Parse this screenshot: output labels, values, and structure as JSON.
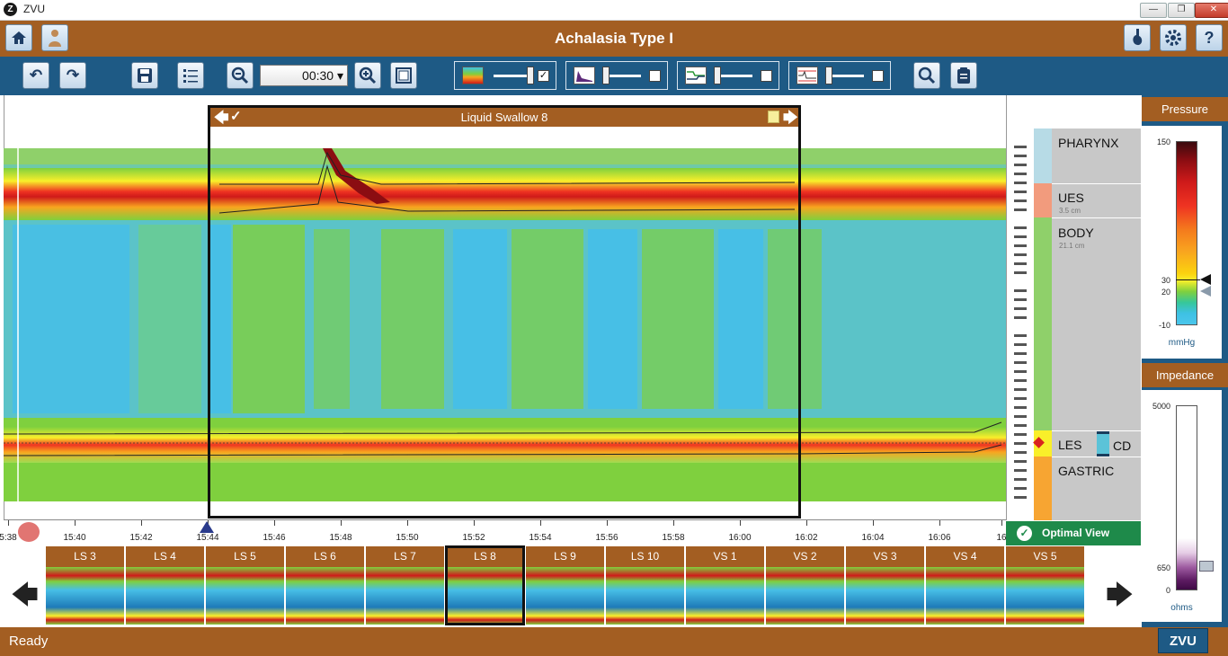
{
  "window": {
    "app_name": "ZVU",
    "logo_letter": "Z",
    "minimize": "—",
    "restore": "❐",
    "close": "✕"
  },
  "header": {
    "title": "Achalasia Type I"
  },
  "toolbar": {
    "zoom_value": "00:30 ▾"
  },
  "swallow": {
    "title": "Liquid Swallow 8"
  },
  "time_axis": {
    "ticks": [
      "5:38",
      "15:40",
      "15:42",
      "15:44",
      "15:46",
      "15:48",
      "15:50",
      "15:52",
      "15:54",
      "15:56",
      "15:58",
      "16:00",
      "16:02",
      "16:04",
      "16:06",
      "16"
    ]
  },
  "thumbnails": [
    "LS 3",
    "LS 4",
    "LS 5",
    "LS 6",
    "LS 7",
    "LS 8",
    "LS 9",
    "LS 10",
    "VS 1",
    "VS 2",
    "VS 3",
    "VS 4",
    "VS 5"
  ],
  "anatomy": {
    "pharynx": "PHARYNX",
    "ues": "UES",
    "ues_sub": "3.5 cm",
    "body": "BODY",
    "body_sub": "21.1 cm",
    "les": "LES",
    "cd": "CD",
    "gastric": "GASTRIC"
  },
  "optimal_view": "Optimal View",
  "pressure": {
    "title": "Pressure",
    "ticks": [
      "150",
      "30",
      "20",
      "-10"
    ],
    "unit": "mmHg"
  },
  "impedance": {
    "title": "Impedance",
    "ticks": [
      "5000",
      "650",
      "0"
    ],
    "unit": "ohms"
  },
  "status": {
    "text": "Ready",
    "logo": "ZVU"
  }
}
